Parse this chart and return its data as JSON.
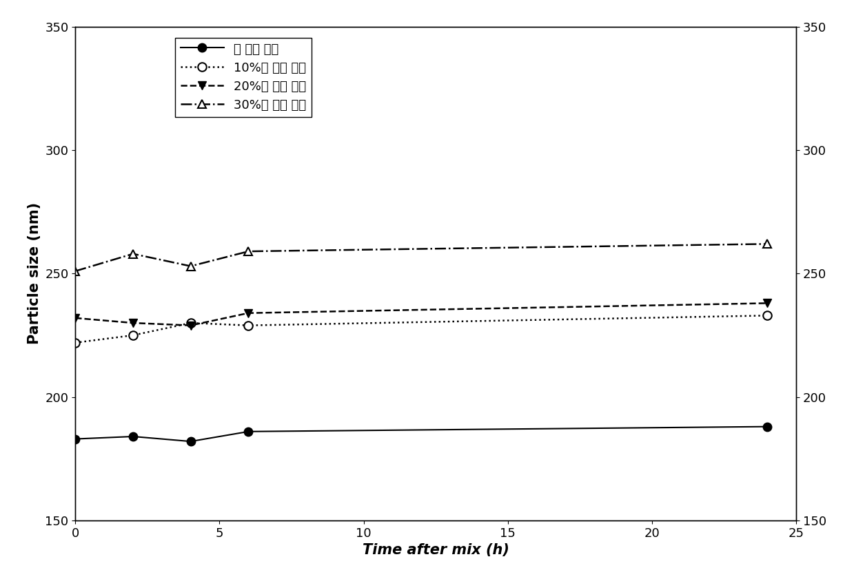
{
  "x_markers": [
    0,
    2,
    4,
    6,
    24
  ],
  "x_line": [
    0,
    2,
    4,
    6,
    24
  ],
  "series1_y_markers": [
    183,
    184,
    182,
    186,
    188
  ],
  "series2_y_markers": [
    222,
    225,
    230,
    229,
    233
  ],
  "series3_y_markers": [
    232,
    230,
    229,
    234,
    238
  ],
  "series4_y_markers": [
    251,
    258,
    253,
    259,
    262
  ],
  "series1_y_line": [
    183,
    184,
    182,
    186,
    188
  ],
  "series2_y_line": [
    222,
    225,
    230,
    229,
    233
  ],
  "series3_y_line": [
    232,
    230,
    229,
    234,
    238
  ],
  "series4_y_line": [
    251,
    258,
    253,
    259,
    262
  ],
  "legend1": "空 白脂 肪乳",
  "legend2": "10%市 售脂 肪乳",
  "legend3": "20%市 售脂 肪乳",
  "legend4": "30%市 售脂 肪乳",
  "xlabel": "Time after mix (h)",
  "ylabel": "Particle size (nm)",
  "ylim": [
    150,
    350
  ],
  "xlim": [
    0,
    25
  ],
  "yticks": [
    150,
    200,
    250,
    300,
    350
  ],
  "xticks": [
    0,
    5,
    10,
    15,
    20,
    25
  ],
  "background_color": "#ffffff",
  "line_color": "#000000"
}
